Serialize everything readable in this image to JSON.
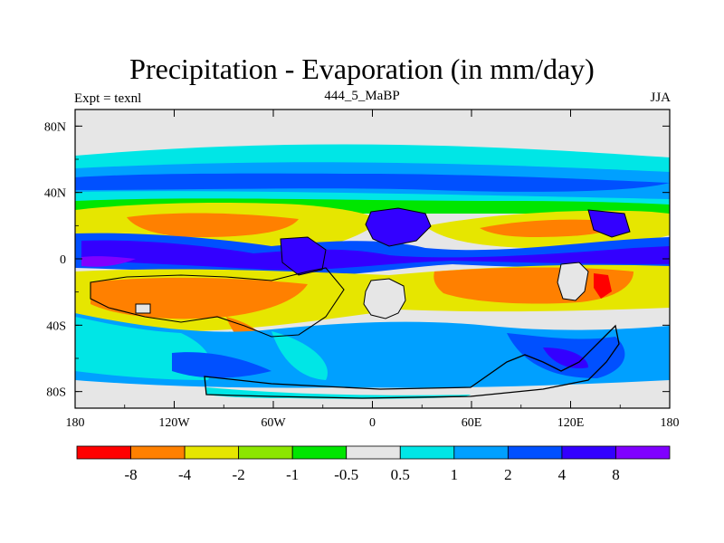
{
  "title": "Precipitation - Evaporation (in mm/day)",
  "subtitle": "444_5_MaBP",
  "left_label": "Expt = texnl",
  "right_label": "JJA",
  "map": {
    "type": "filled-contour-map",
    "lon_range": [
      -180,
      180
    ],
    "lat_range": [
      -90,
      90
    ],
    "x_tick_labels": [
      "180",
      "120W",
      "60W",
      "0",
      "60E",
      "120E",
      "180"
    ],
    "y_tick_labels": [
      "80N",
      "40N",
      "0",
      "40S",
      "80S"
    ],
    "colorbar": {
      "colors": [
        "#ff0000",
        "#ff8000",
        "#e6e600",
        "#8ce600",
        "#00e600",
        "#e6e6e6",
        "#00e6e6",
        "#00a0ff",
        "#0050ff",
        "#3300ff",
        "#8000ff"
      ],
      "labels": [
        "-8",
        "-4",
        "-2",
        "-1",
        "-0.5",
        "0.5",
        "1",
        "2",
        "4",
        "8"
      ]
    }
  }
}
